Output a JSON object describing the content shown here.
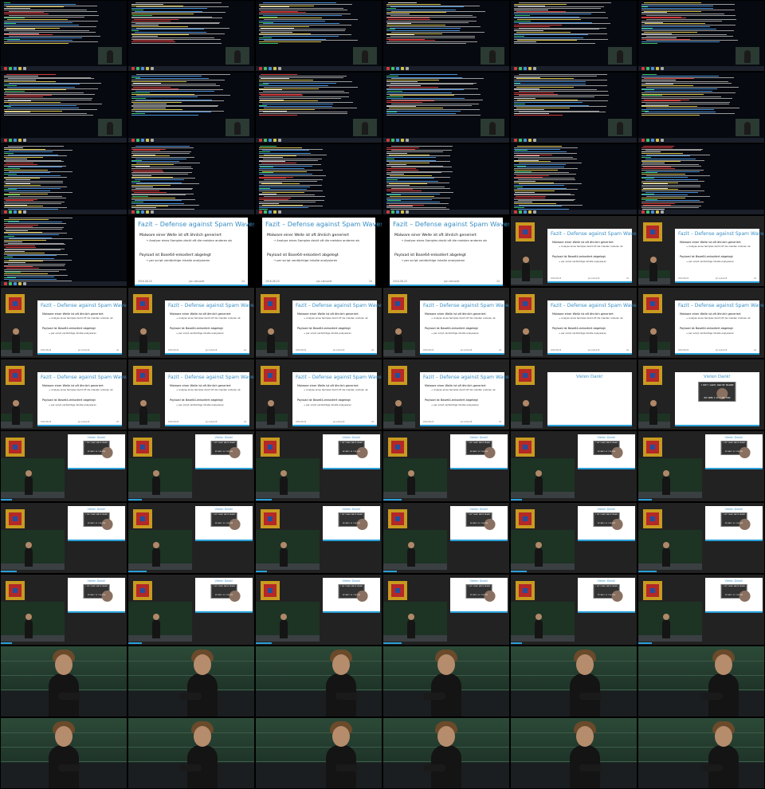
{
  "title_slide": "Fazit – Defense against Spam Waves",
  "bullet1": "Malware einer Welle ist oft ähnlich generiert",
  "sub1": "→ Analyse eines Samples deckt oft die meisten anderen ab",
  "bullet2": "Payload ist Base64-enkodiert abgelegt",
  "sub2": "→ per script verdächtige Inhalte analysieren",
  "thanks": "Vielen Dank!",
  "meme_top": "I DON'T ALWAYS ANALYZE MALWARE",
  "meme_bottom": "BUT WHEN I DO I USE FIND",
  "footer_left": "2016-08-20",
  "footer_mid": "Jan Lehnardt",
  "footer_right": "24",
  "colors": {
    "accent": "#2aa0d8",
    "slide_title": "#3a8fc4",
    "terminal_bg": "#06090f"
  }
}
